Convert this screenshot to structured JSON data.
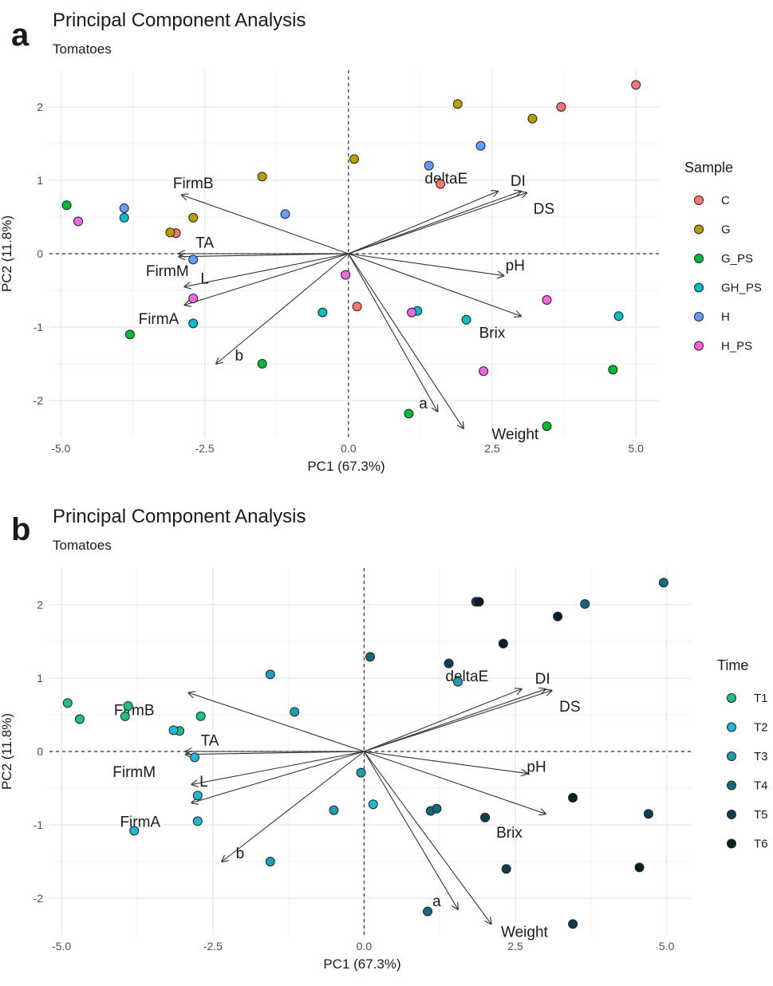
{
  "chart_data": [
    {
      "panel": "a",
      "type": "scatter",
      "title": "Principal Component Analysis",
      "subtitle": "Tomatoes",
      "xlabel": "PC1 (67.3%)",
      "ylabel": "PC2 (11.8%)",
      "xlim": [
        -5.2,
        5.4
      ],
      "ylim": [
        -2.5,
        2.5
      ],
      "xticks": [
        -5.0,
        -2.5,
        0.0,
        2.5,
        5.0
      ],
      "xtick_labels": [
        "-5.0",
        "-2.5",
        "0.0",
        "2.5",
        "5.0"
      ],
      "yticks": [
        2,
        1,
        0,
        -1,
        -2
      ],
      "ytick_labels": [
        "2",
        "1",
        "0",
        "-1",
        "-2"
      ],
      "grid": true,
      "legend_title": "Sample",
      "legend_position": "right",
      "legend": [
        {
          "label": "C",
          "color": "#f8766d"
        },
        {
          "label": "G",
          "color": "#b79f00"
        },
        {
          "label": "G_PS",
          "color": "#00ba38"
        },
        {
          "label": "GH_PS",
          "color": "#00bfc4"
        },
        {
          "label": "H",
          "color": "#619cff"
        },
        {
          "label": "H_PS",
          "color": "#f564e3"
        }
      ],
      "points": [
        {
          "x": 5.0,
          "y": 2.3,
          "group": "C"
        },
        {
          "x": 3.7,
          "y": 2.0,
          "group": "C"
        },
        {
          "x": 1.6,
          "y": 0.95,
          "group": "C"
        },
        {
          "x": -3.0,
          "y": 0.28,
          "group": "C"
        },
        {
          "x": 0.15,
          "y": -0.72,
          "group": "C"
        },
        {
          "x": 1.9,
          "y": 2.04,
          "group": "G"
        },
        {
          "x": 3.2,
          "y": 1.84,
          "group": "G"
        },
        {
          "x": 0.1,
          "y": 1.29,
          "group": "G"
        },
        {
          "x": -1.5,
          "y": 1.05,
          "group": "G"
        },
        {
          "x": -2.7,
          "y": 0.49,
          "group": "G"
        },
        {
          "x": -3.1,
          "y": 0.29,
          "group": "G"
        },
        {
          "x": -4.9,
          "y": 0.66,
          "group": "G_PS"
        },
        {
          "x": -3.8,
          "y": -1.1,
          "group": "G_PS"
        },
        {
          "x": -1.5,
          "y": -1.5,
          "group": "G_PS"
        },
        {
          "x": 1.05,
          "y": -2.18,
          "group": "G_PS"
        },
        {
          "x": 3.45,
          "y": -2.35,
          "group": "G_PS"
        },
        {
          "x": 4.6,
          "y": -1.58,
          "group": "G_PS"
        },
        {
          "x": -3.9,
          "y": 0.49,
          "group": "GH_PS"
        },
        {
          "x": -2.7,
          "y": -0.95,
          "group": "GH_PS"
        },
        {
          "x": -0.45,
          "y": -0.8,
          "group": "GH_PS"
        },
        {
          "x": 1.2,
          "y": -0.78,
          "group": "GH_PS"
        },
        {
          "x": 2.05,
          "y": -0.9,
          "group": "GH_PS"
        },
        {
          "x": 4.7,
          "y": -0.85,
          "group": "GH_PS"
        },
        {
          "x": -3.9,
          "y": 0.62,
          "group": "H"
        },
        {
          "x": -1.1,
          "y": 0.54,
          "group": "H"
        },
        {
          "x": -2.7,
          "y": -0.08,
          "group": "H"
        },
        {
          "x": 1.4,
          "y": 1.2,
          "group": "H"
        },
        {
          "x": 2.3,
          "y": 1.47,
          "group": "H"
        },
        {
          "x": -4.7,
          "y": 0.44,
          "group": "H_PS"
        },
        {
          "x": -2.7,
          "y": -0.61,
          "group": "H_PS"
        },
        {
          "x": -0.05,
          "y": -0.29,
          "group": "H_PS"
        },
        {
          "x": 1.1,
          "y": -0.8,
          "group": "H_PS"
        },
        {
          "x": 2.35,
          "y": -1.6,
          "group": "H_PS"
        },
        {
          "x": 3.45,
          "y": -0.63,
          "group": "H_PS"
        }
      ],
      "loadings": [
        {
          "label": "deltaE",
          "x": 2.6,
          "y": 0.85,
          "lx": 1.7,
          "ly": 1.03
        },
        {
          "label": "DI",
          "x": 3.0,
          "y": 0.85,
          "lx": 2.95,
          "ly": 1.0
        },
        {
          "label": "DS",
          "x": 3.1,
          "y": 0.83,
          "lx": 3.4,
          "ly": 0.62
        },
        {
          "label": "FirmB",
          "x": -2.9,
          "y": 0.8,
          "lx": -2.7,
          "ly": 0.97
        },
        {
          "label": "TA",
          "x": -2.95,
          "y": 0.0,
          "lx": -2.5,
          "ly": 0.16
        },
        {
          "label": "pH",
          "x": 2.7,
          "y": -0.3,
          "lx": 2.9,
          "ly": -0.15
        },
        {
          "label": "FirmM",
          "x": -2.95,
          "y": -0.04,
          "lx": -3.15,
          "ly": -0.23
        },
        {
          "label": "L",
          "x": -2.85,
          "y": -0.45,
          "lx": -2.5,
          "ly": -0.33
        },
        {
          "label": "Brix",
          "x": 3.0,
          "y": -0.85,
          "lx": 2.5,
          "ly": -1.07
        },
        {
          "label": "FirmA",
          "x": -2.85,
          "y": -0.7,
          "lx": -3.3,
          "ly": -0.88
        },
        {
          "label": "b",
          "x": -2.3,
          "y": -1.5,
          "lx": -1.9,
          "ly": -1.38
        },
        {
          "label": "a",
          "x": 1.55,
          "y": -2.15,
          "lx": 1.3,
          "ly": -2.03
        },
        {
          "label": "Weight",
          "x": 2.0,
          "y": -2.38,
          "lx": 2.9,
          "ly": -2.45
        }
      ]
    },
    {
      "panel": "b",
      "type": "scatter",
      "title": "Principal Component Analysis",
      "subtitle": "Tomatoes",
      "xlabel": "PC1 (67.3%)",
      "ylabel": "PC2 (11.8%)",
      "xlim": [
        -5.2,
        5.4
      ],
      "ylim": [
        -2.5,
        2.5
      ],
      "xticks": [
        -5.0,
        -2.5,
        0.0,
        2.5,
        5.0
      ],
      "xtick_labels": [
        "-5.0",
        "-2.5",
        "0.0",
        "2.5",
        "5.0"
      ],
      "yticks": [
        2,
        1,
        0,
        -1,
        -2
      ],
      "ytick_labels": [
        "2",
        "1",
        "0",
        "-1",
        "-2"
      ],
      "grid": true,
      "legend_title": "Time",
      "legend_position": "right",
      "legend": [
        {
          "label": "T1",
          "color": "#1fbf7f"
        },
        {
          "label": "T2",
          "color": "#1fb8d8"
        },
        {
          "label": "T3",
          "color": "#1a9fb5"
        },
        {
          "label": "T4",
          "color": "#136a7e"
        },
        {
          "label": "T5",
          "color": "#0c3f4e"
        },
        {
          "label": "T6",
          "color": "#06202a"
        }
      ],
      "points": [
        {
          "x": -4.9,
          "y": 0.66,
          "group": "T1"
        },
        {
          "x": -4.7,
          "y": 0.44,
          "group": "T1"
        },
        {
          "x": -3.9,
          "y": 0.62,
          "group": "T1"
        },
        {
          "x": -3.95,
          "y": 0.48,
          "group": "T1"
        },
        {
          "x": -3.05,
          "y": 0.28,
          "group": "T1"
        },
        {
          "x": -2.7,
          "y": 0.48,
          "group": "T1"
        },
        {
          "x": -3.8,
          "y": -1.08,
          "group": "T2"
        },
        {
          "x": -3.15,
          "y": 0.29,
          "group": "T2"
        },
        {
          "x": -2.75,
          "y": -0.6,
          "group": "T2"
        },
        {
          "x": -2.75,
          "y": -0.95,
          "group": "T2"
        },
        {
          "x": -2.8,
          "y": -0.08,
          "group": "T2"
        },
        {
          "x": 0.15,
          "y": -0.72,
          "group": "T2"
        },
        {
          "x": -1.55,
          "y": 1.05,
          "group": "T3"
        },
        {
          "x": -1.15,
          "y": 0.54,
          "group": "T3"
        },
        {
          "x": -0.5,
          "y": -0.8,
          "group": "T3"
        },
        {
          "x": -0.05,
          "y": -0.29,
          "group": "T3"
        },
        {
          "x": -1.55,
          "y": -1.5,
          "group": "T3"
        },
        {
          "x": 1.55,
          "y": 0.95,
          "group": "T3"
        },
        {
          "x": 0.1,
          "y": 1.29,
          "group": "T4"
        },
        {
          "x": 3.65,
          "y": 2.01,
          "group": "T4"
        },
        {
          "x": 1.05,
          "y": -2.18,
          "group": "T4"
        },
        {
          "x": 1.1,
          "y": -0.81,
          "group": "T4"
        },
        {
          "x": 1.2,
          "y": -0.78,
          "group": "T4"
        },
        {
          "x": 4.95,
          "y": 2.3,
          "group": "T4"
        },
        {
          "x": 1.4,
          "y": 1.2,
          "group": "T5"
        },
        {
          "x": 2.0,
          "y": -0.9,
          "group": "T5"
        },
        {
          "x": 2.35,
          "y": -1.6,
          "group": "T5"
        },
        {
          "x": 4.7,
          "y": -0.85,
          "group": "T5"
        },
        {
          "x": 1.85,
          "y": 2.04,
          "group": "T5"
        },
        {
          "x": 3.45,
          "y": -2.35,
          "group": "T5"
        },
        {
          "x": 1.9,
          "y": 2.04,
          "group": "T6"
        },
        {
          "x": 3.2,
          "y": 1.84,
          "group": "T6"
        },
        {
          "x": 2.3,
          "y": 1.47,
          "group": "T6"
        },
        {
          "x": 3.45,
          "y": -0.63,
          "group": "T6"
        },
        {
          "x": 4.55,
          "y": -1.58,
          "group": "T6"
        }
      ],
      "loadings": [
        {
          "label": "deltaE",
          "x": 2.6,
          "y": 0.85,
          "lx": 1.7,
          "ly": 1.03
        },
        {
          "label": "DI",
          "x": 3.0,
          "y": 0.85,
          "lx": 2.95,
          "ly": 1.0
        },
        {
          "label": "DS",
          "x": 3.1,
          "y": 0.83,
          "lx": 3.4,
          "ly": 0.62
        },
        {
          "label": "FirmB",
          "x": -2.9,
          "y": 0.8,
          "lx": -3.8,
          "ly": 0.57
        },
        {
          "label": "TA",
          "x": -2.95,
          "y": 0.0,
          "lx": -2.55,
          "ly": 0.16
        },
        {
          "label": "pH",
          "x": 2.7,
          "y": -0.3,
          "lx": 2.85,
          "ly": -0.2
        },
        {
          "label": "FirmM",
          "x": -2.95,
          "y": -0.04,
          "lx": -3.8,
          "ly": -0.27
        },
        {
          "label": "L",
          "x": -2.85,
          "y": -0.45,
          "lx": -2.65,
          "ly": -0.4
        },
        {
          "label": "Brix",
          "x": 3.0,
          "y": -0.85,
          "lx": 2.4,
          "ly": -1.1
        },
        {
          "label": "FirmA",
          "x": -2.85,
          "y": -0.7,
          "lx": -3.7,
          "ly": -0.95
        },
        {
          "label": "b",
          "x": -2.35,
          "y": -1.5,
          "lx": -2.05,
          "ly": -1.38
        },
        {
          "label": "a",
          "x": 1.55,
          "y": -2.15,
          "lx": 1.2,
          "ly": -2.03
        },
        {
          "label": "Weight",
          "x": 2.1,
          "y": -2.35,
          "lx": 2.65,
          "ly": -2.45
        }
      ]
    }
  ]
}
